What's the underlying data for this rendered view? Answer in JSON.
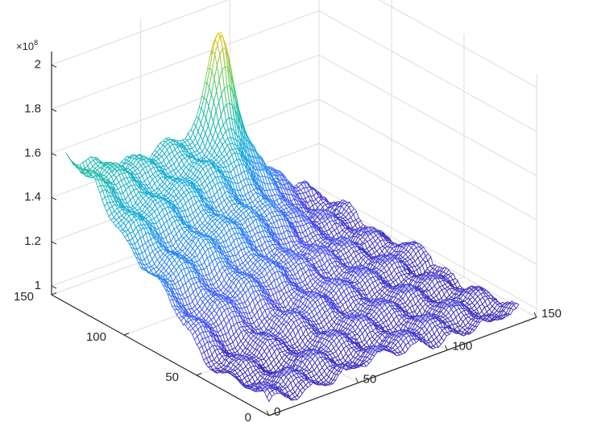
{
  "chart_data": {
    "type": "surface-mesh",
    "title": "",
    "xlabel": "",
    "ylabel": "",
    "zlabel": "",
    "colormap": "parula",
    "grid": true,
    "box": false,
    "x_ticks": [
      "0",
      "50",
      "100",
      "150"
    ],
    "y_ticks": [
      "0",
      "50",
      "100",
      "150"
    ],
    "z_ticks": [
      "1",
      "1.2",
      "1.4",
      "1.6",
      "1.8",
      "2"
    ],
    "z_exponent": "×10",
    "z_exponent_power": "8",
    "xlim": [
      0,
      150
    ],
    "ylim": [
      0,
      150
    ],
    "zlim": [
      0.96,
      2.06
    ],
    "data_x_range": [
      0,
      140
    ],
    "data_y_range": [
      0,
      140
    ],
    "data_z_range": [
      0.98,
      2.0
    ],
    "description_points": [
      {
        "x": 85,
        "y": 140,
        "z": 2.0,
        "label": "sharp peak"
      },
      {
        "x": 0,
        "y": 140,
        "z": 1.65
      },
      {
        "x": 140,
        "y": 0,
        "z": 1.05
      },
      {
        "x": 0,
        "y": 0,
        "z": 1.05
      },
      {
        "x": 140,
        "y": 140,
        "z": 1.0
      }
    ]
  }
}
